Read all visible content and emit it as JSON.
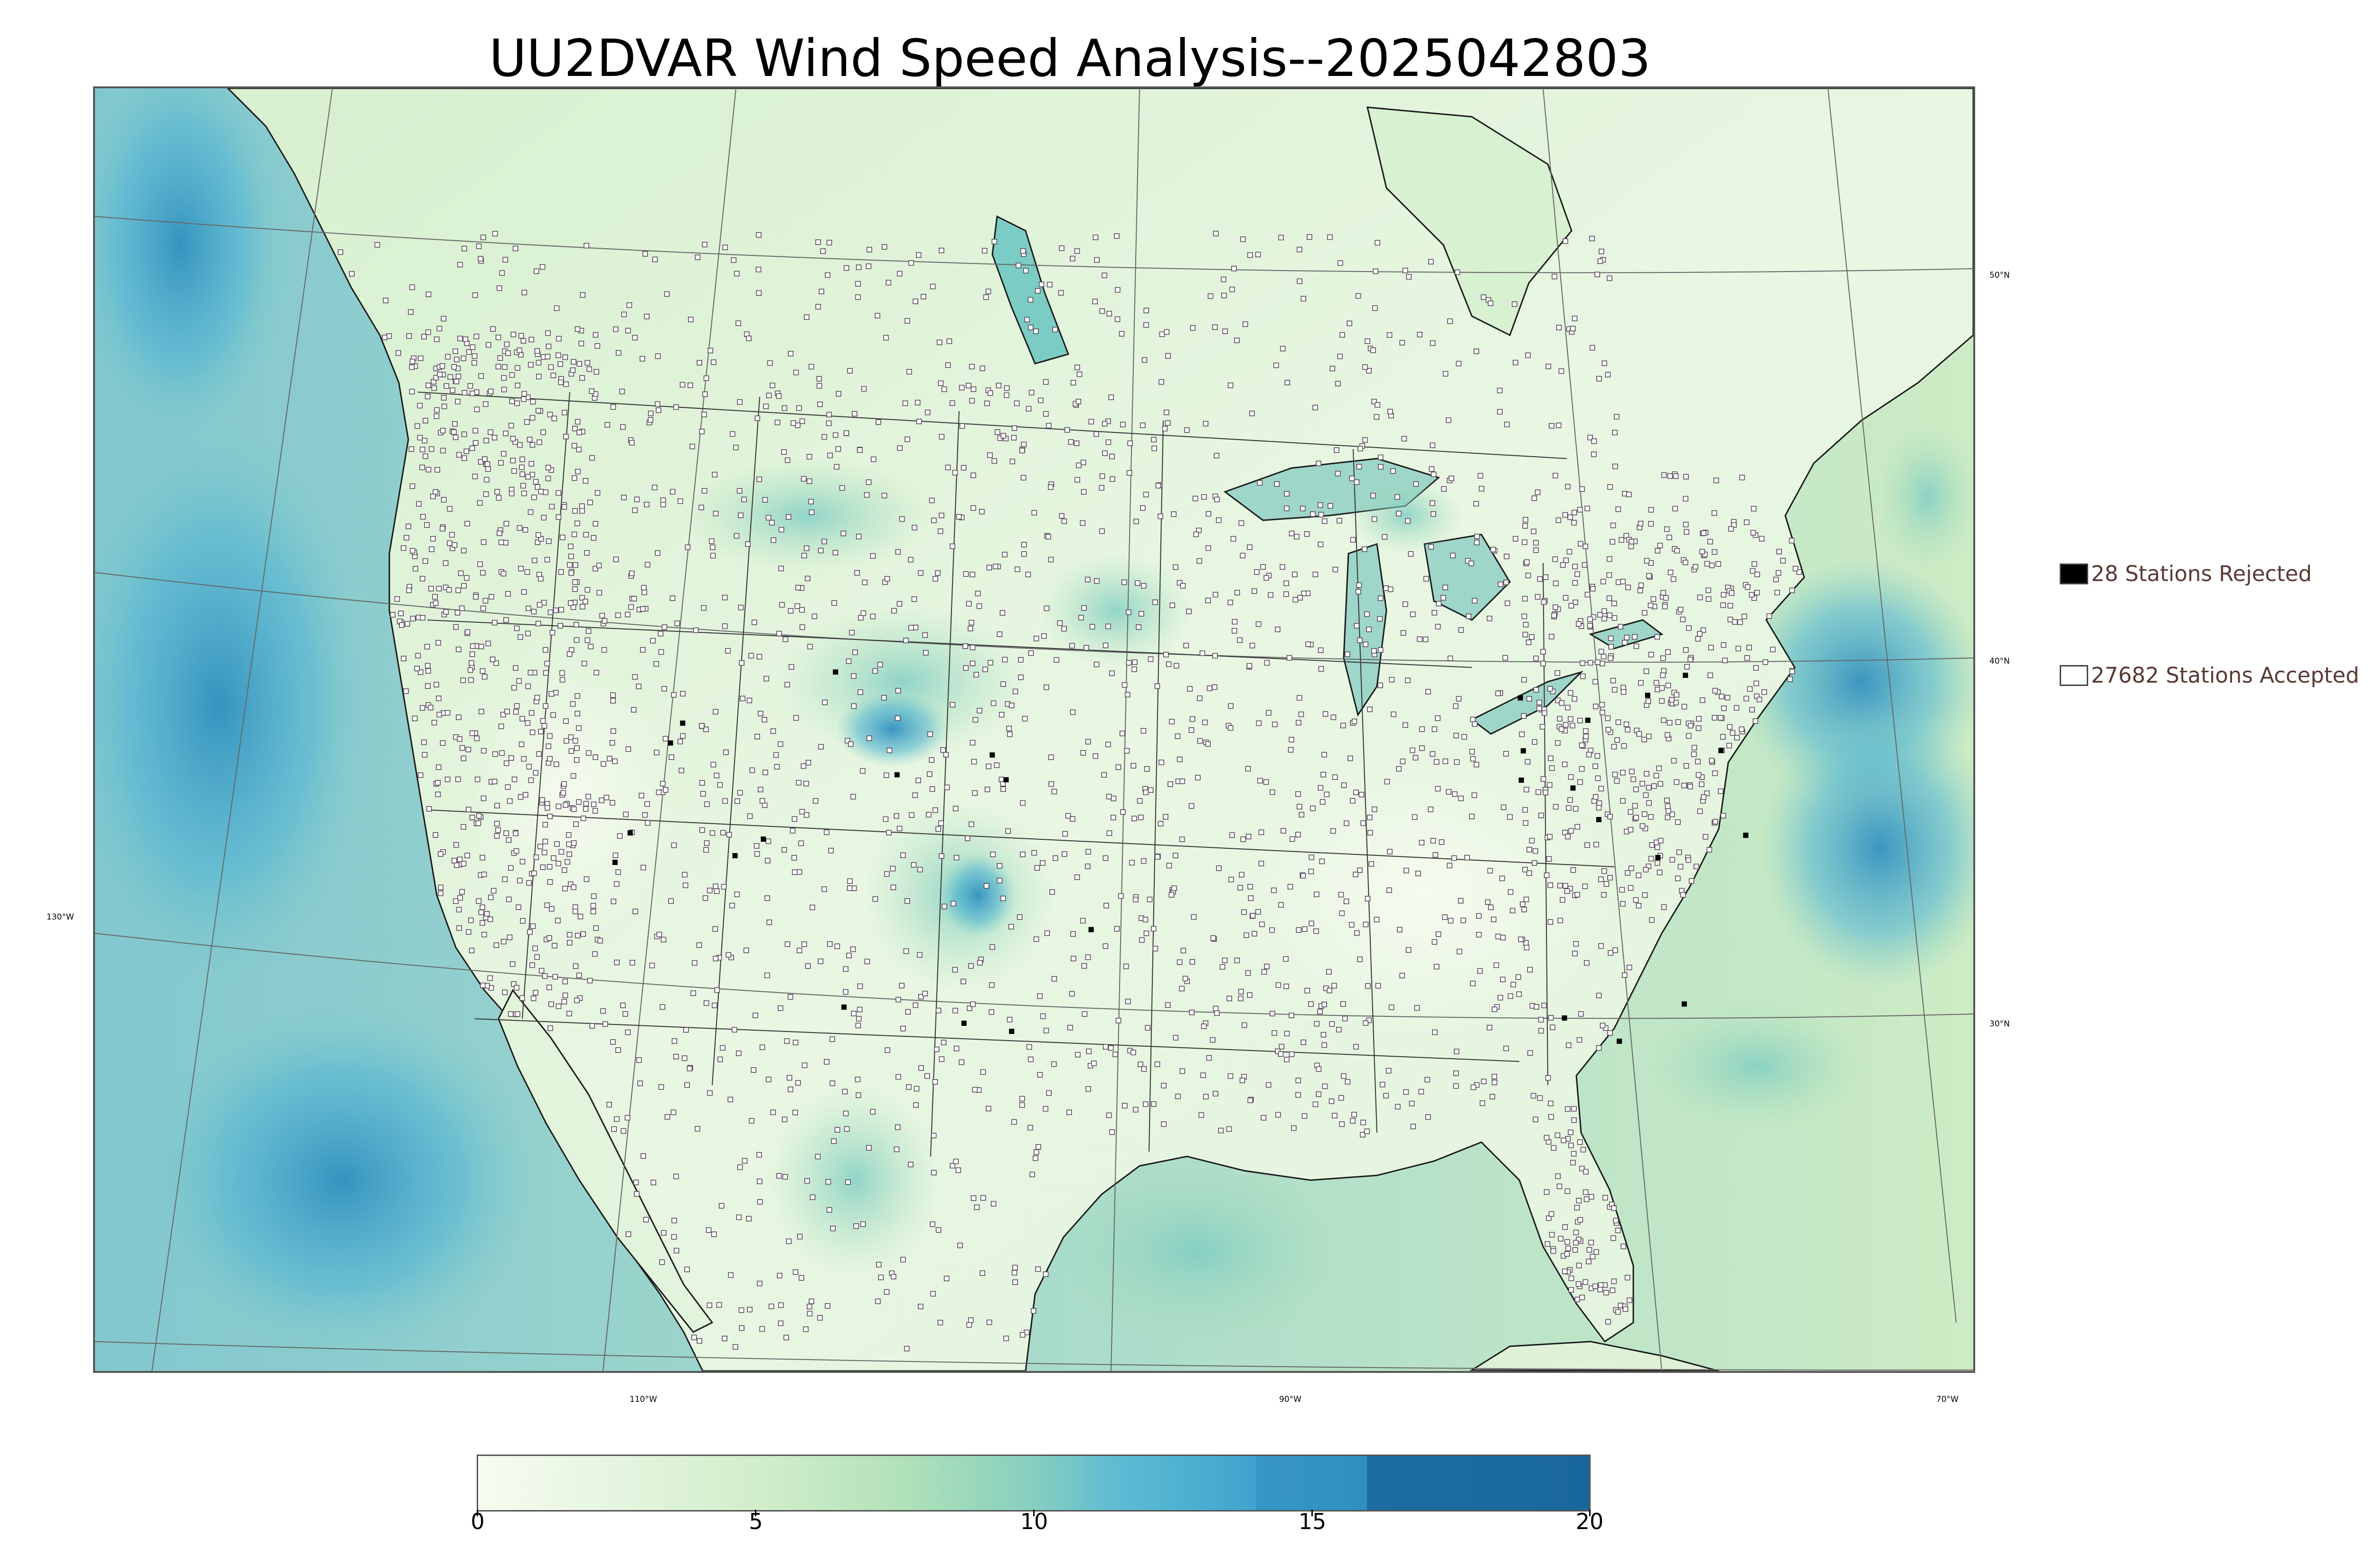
{
  "map": {
    "title": "UU2DVAR Wind Speed Analysis--2025042803",
    "lat_labels": [
      "50°N",
      "40°N",
      "30°N"
    ],
    "lon_labels": [
      "130°W",
      "110°W",
      "90°W",
      "70°W"
    ],
    "variable": "wind speed",
    "region": "Continental United States",
    "colors": {
      "ocean_high": "#2e8fc0",
      "ocean_mid": "#6cbfd6",
      "land_low": "#e9f6e4",
      "land_mid": "#c8eabf",
      "coastline": "#000000",
      "boundary": "#555555"
    }
  },
  "legend": {
    "rejected": {
      "label": "28 Stations Rejected",
      "count": 28,
      "swatch": "#000000"
    },
    "accepted": {
      "label": "27682 Stations Accepted",
      "count": 27682,
      "swatch": "#ffffff"
    }
  },
  "colorbar": {
    "min": 0,
    "max": 20,
    "ticks": [
      "0",
      "5",
      "10",
      "15",
      "20"
    ],
    "colormap": "GnBu",
    "stops": [
      "#f7fcf0",
      "#e0f3db",
      "#ccebc5",
      "#a8ddb5",
      "#7bccc4",
      "#4eb3d3",
      "#2b8cbe",
      "#1b6fa4",
      "#19689c"
    ]
  }
}
